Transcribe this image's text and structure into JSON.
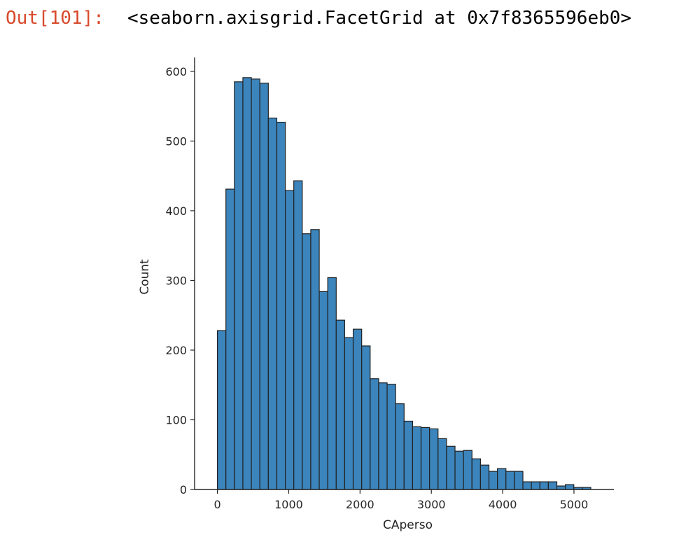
{
  "cell_output": {
    "prompt": "Out[101]:",
    "text": "<seaborn.axisgrid.FacetGrid at 0x7f8365596eb0>"
  },
  "chart_data": {
    "type": "bar",
    "xlabel": "CAperso",
    "ylabel": "Count",
    "xlim": [
      -320,
      5560
    ],
    "ylim": [
      0,
      620
    ],
    "x_ticks": [
      0,
      1000,
      2000,
      3000,
      4000,
      5000
    ],
    "x_tick_labels": [
      "0",
      "1000",
      "2000",
      "3000",
      "4000",
      "5000"
    ],
    "y_ticks": [
      0,
      100,
      200,
      300,
      400,
      500,
      600
    ],
    "y_tick_labels": [
      "0",
      "100",
      "200",
      "300",
      "400",
      "500",
      "600"
    ],
    "bin_width": 119,
    "bin_start": 0,
    "values": [
      228,
      431,
      585,
      591,
      589,
      583,
      533,
      527,
      429,
      443,
      367,
      373,
      284,
      304,
      243,
      218,
      230,
      206,
      159,
      153,
      151,
      123,
      98,
      90,
      89,
      87,
      73,
      62,
      55,
      56,
      44,
      35,
      26,
      30,
      26,
      26,
      11,
      11,
      11,
      11,
      5,
      7,
      3,
      3
    ],
    "bar_color": "#3b84bc",
    "edge_color": "#222222",
    "grid": false
  }
}
